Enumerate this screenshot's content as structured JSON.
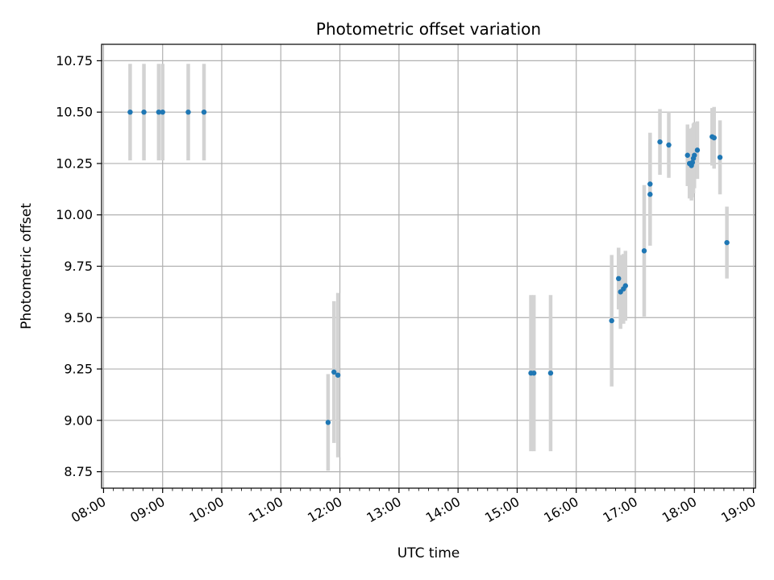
{
  "chart_data": {
    "type": "scatter",
    "title": "Photometric offset variation",
    "xlabel": "UTC time",
    "ylabel": "Photometric offset",
    "x_unit": "hours UTC",
    "xlim": [
      "07:58",
      "19:02"
    ],
    "ylim": [
      8.67,
      10.83
    ],
    "x_ticks": [
      "08:00",
      "09:00",
      "10:00",
      "11:00",
      "12:00",
      "13:00",
      "14:00",
      "15:00",
      "16:00",
      "17:00",
      "18:00",
      "19:00"
    ],
    "y_ticks": [
      "8.75",
      "9.00",
      "9.25",
      "9.50",
      "9.75",
      "10.00",
      "10.25",
      "10.50",
      "10.75"
    ],
    "grid": true,
    "colors": {
      "point": "#1f77b4",
      "errorbar": "#d3d3d3",
      "grid": "#b0b0b0"
    },
    "points": [
      {
        "time": "08:27",
        "y": 10.5,
        "yerr": 0.235
      },
      {
        "time": "08:41",
        "y": 10.5,
        "yerr": 0.235
      },
      {
        "time": "08:56",
        "y": 10.5,
        "yerr": 0.235
      },
      {
        "time": "09:00",
        "y": 10.5,
        "yerr": 0.235
      },
      {
        "time": "09:26",
        "y": 10.5,
        "yerr": 0.235
      },
      {
        "time": "09:42",
        "y": 10.5,
        "yerr": 0.235
      },
      {
        "time": "11:48",
        "y": 8.99,
        "yerr": 0.235
      },
      {
        "time": "11:54",
        "y": 9.235,
        "yerr": 0.345
      },
      {
        "time": "11:58",
        "y": 9.22,
        "yerr": 0.4
      },
      {
        "time": "15:14",
        "y": 9.23,
        "yerr": 0.38
      },
      {
        "time": "15:17",
        "y": 9.23,
        "yerr": 0.38
      },
      {
        "time": "15:34",
        "y": 9.23,
        "yerr": 0.38
      },
      {
        "time": "16:36",
        "y": 9.485,
        "yerr": 0.32
      },
      {
        "time": "16:43",
        "y": 9.69,
        "yerr": 0.15
      },
      {
        "time": "16:45",
        "y": 9.625,
        "yerr": 0.18
      },
      {
        "time": "16:48",
        "y": 9.64,
        "yerr": 0.17
      },
      {
        "time": "16:50",
        "y": 9.655,
        "yerr": 0.17
      },
      {
        "time": "17:09",
        "y": 9.825,
        "yerr": 0.32
      },
      {
        "time": "17:15",
        "y": 10.15,
        "yerr": 0.25
      },
      {
        "time": "17:15",
        "y": 10.1,
        "yerr": 0.25
      },
      {
        "time": "17:25",
        "y": 10.355,
        "yerr": 0.16
      },
      {
        "time": "17:34",
        "y": 10.34,
        "yerr": 0.16
      },
      {
        "time": "17:53",
        "y": 10.29,
        "yerr": 0.15
      },
      {
        "time": "17:55",
        "y": 10.25,
        "yerr": 0.17
      },
      {
        "time": "17:57",
        "y": 10.24,
        "yerr": 0.17
      },
      {
        "time": "17:58",
        "y": 10.255,
        "yerr": 0.17
      },
      {
        "time": "17:59",
        "y": 10.275,
        "yerr": 0.17
      },
      {
        "time": "18:00",
        "y": 10.29,
        "yerr": 0.16
      },
      {
        "time": "18:03",
        "y": 10.315,
        "yerr": 0.14
      },
      {
        "time": "18:18",
        "y": 10.38,
        "yerr": 0.14
      },
      {
        "time": "18:20",
        "y": 10.375,
        "yerr": 0.15
      },
      {
        "time": "18:26",
        "y": 10.28,
        "yerr": 0.18
      },
      {
        "time": "18:33",
        "y": 9.865,
        "yerr": 0.175
      }
    ]
  }
}
